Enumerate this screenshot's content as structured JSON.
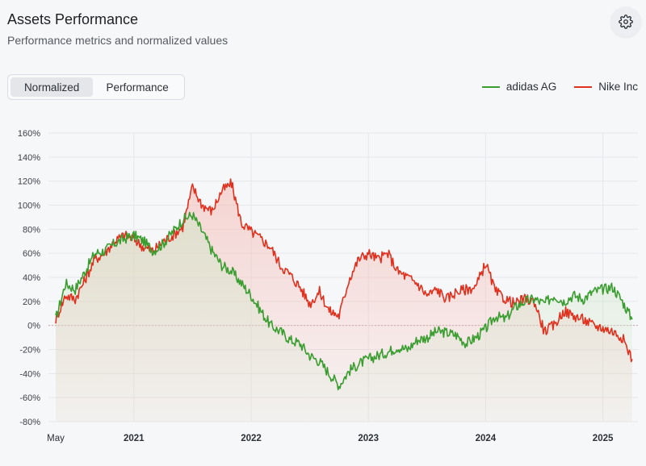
{
  "header": {
    "title": "Assets Performance",
    "subtitle": "Performance metrics and normalized values"
  },
  "settings": {
    "icon": "gear-icon"
  },
  "toggle": {
    "options": [
      "Normalized",
      "Performance"
    ],
    "selected": "Normalized"
  },
  "colors": {
    "adidas": "#3a9d2f",
    "nike": "#e0301e",
    "zero_line": "#c9a8a8",
    "grid": "#e6e7ea"
  },
  "chart_data": {
    "type": "line",
    "title": "",
    "xlabel": "",
    "ylabel": "",
    "ylim": [
      -80,
      160
    ],
    "yticks": [
      "160%",
      "140%",
      "120%",
      "100%",
      "80%",
      "60%",
      "40%",
      "20%",
      "0%",
      "-20%",
      "-40%",
      "-60%",
      "-80%"
    ],
    "xticks": [
      "May",
      "2021",
      "2022",
      "2023",
      "2024",
      "2025"
    ],
    "legend": "top-right",
    "grid": true,
    "x": [
      "2020-05",
      "2020-06",
      "2020-07",
      "2020-08",
      "2020-09",
      "2020-10",
      "2020-11",
      "2020-12",
      "2021-01",
      "2021-02",
      "2021-03",
      "2021-04",
      "2021-05",
      "2021-06",
      "2021-07",
      "2021-08",
      "2021-09",
      "2021-10",
      "2021-11",
      "2021-12",
      "2022-01",
      "2022-02",
      "2022-03",
      "2022-04",
      "2022-05",
      "2022-06",
      "2022-07",
      "2022-08",
      "2022-09",
      "2022-10",
      "2022-11",
      "2022-12",
      "2023-01",
      "2023-02",
      "2023-03",
      "2023-04",
      "2023-05",
      "2023-06",
      "2023-07",
      "2023-08",
      "2023-09",
      "2023-10",
      "2023-11",
      "2023-12",
      "2024-01",
      "2024-02",
      "2024-03",
      "2024-04",
      "2024-05",
      "2024-06",
      "2024-07",
      "2024-08",
      "2024-09",
      "2024-10",
      "2024-11",
      "2024-12",
      "2025-01",
      "2025-02",
      "2025-03",
      "2025-04"
    ],
    "series": [
      {
        "name": "adidas AG",
        "values": [
          5,
          35,
          30,
          45,
          60,
          62,
          68,
          72,
          75,
          70,
          62,
          68,
          78,
          88,
          92,
          78,
          62,
          50,
          45,
          35,
          25,
          12,
          0,
          -5,
          -12,
          -15,
          -25,
          -30,
          -40,
          -50,
          -38,
          -32,
          -28,
          -25,
          -22,
          -18,
          -20,
          -12,
          -10,
          -5,
          -6,
          -8,
          -15,
          -10,
          -3,
          8,
          5,
          15,
          20,
          22,
          18,
          25,
          20,
          25,
          22,
          28,
          30,
          32,
          20,
          5
        ]
      },
      {
        "name": "Nike Inc",
        "values": [
          5,
          25,
          22,
          38,
          55,
          60,
          70,
          75,
          72,
          65,
          62,
          70,
          75,
          82,
          115,
          100,
          95,
          112,
          118,
          85,
          78,
          72,
          65,
          50,
          42,
          32,
          18,
          28,
          12,
          8,
          38,
          55,
          60,
          55,
          60,
          45,
          40,
          35,
          25,
          30,
          22,
          28,
          30,
          32,
          52,
          28,
          22,
          18,
          22,
          20,
          -5,
          0,
          12,
          8,
          5,
          0,
          -2,
          -5,
          -10,
          -28
        ]
      }
    ]
  }
}
